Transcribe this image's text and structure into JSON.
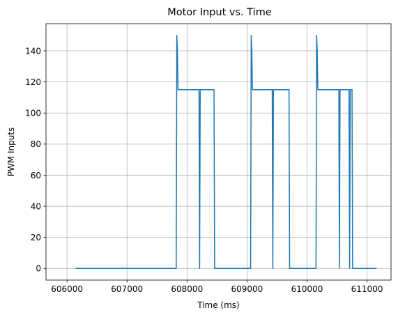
{
  "chart_data": {
    "type": "line",
    "title": "Motor Input vs. Time",
    "xlabel": "Time (ms)",
    "ylabel": "PWM Inputs",
    "xlim": [
      605650,
      611400
    ],
    "ylim": [
      -7.5,
      157.5
    ],
    "xticks": [
      606000,
      607000,
      608000,
      609000,
      610000,
      611000
    ],
    "yticks": [
      0,
      20,
      40,
      60,
      80,
      100,
      120,
      140
    ],
    "grid": true,
    "legend": "none",
    "line_color": "#1f77b4",
    "series": [
      {
        "name": "",
        "x": [
          606150,
          607820,
          607830,
          607840,
          607850,
          608200,
          608210,
          608220,
          608230,
          608450,
          608460,
          609060,
          609070,
          609080,
          609090,
          609420,
          609430,
          609440,
          609450,
          609700,
          609710,
          610150,
          610160,
          610170,
          610180,
          610530,
          610540,
          610550,
          610560,
          610700,
          610710,
          610720,
          610740,
          610750,
          610760,
          611150
        ],
        "y": [
          0,
          0,
          150,
          140,
          115,
          115,
          0,
          115,
          115,
          115,
          0,
          0,
          150,
          140,
          115,
          115,
          0,
          115,
          115,
          115,
          0,
          0,
          150,
          140,
          115,
          115,
          0,
          115,
          115,
          115,
          0,
          115,
          115,
          115,
          0,
          0
        ]
      }
    ]
  }
}
